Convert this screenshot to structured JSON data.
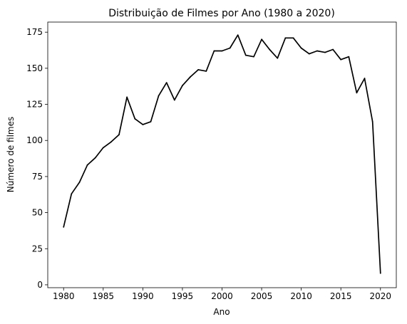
{
  "chart_data": {
    "type": "line",
    "title": "Distribuição de Filmes por Ano (1980 a 2020)",
    "xlabel": "Ano",
    "ylabel": "Número de filmes",
    "xlim": [
      1978,
      2022
    ],
    "ylim": [
      -2,
      182
    ],
    "xticks": [
      1980,
      1985,
      1990,
      1995,
      2000,
      2005,
      2010,
      2015,
      2020
    ],
    "yticks": [
      0,
      25,
      50,
      75,
      100,
      125,
      150,
      175
    ],
    "grid": false,
    "legend": "none",
    "series": [
      {
        "color": "#000000",
        "x": [
          1980,
          1981,
          1982,
          1983,
          1984,
          1985,
          1986,
          1987,
          1988,
          1989,
          1990,
          1991,
          1992,
          1993,
          1994,
          1995,
          1996,
          1997,
          1998,
          1999,
          2000,
          2001,
          2002,
          2003,
          2004,
          2005,
          2006,
          2007,
          2008,
          2009,
          2010,
          2011,
          2012,
          2013,
          2014,
          2015,
          2016,
          2017,
          2018,
          2019,
          2020
        ],
        "y": [
          40,
          63,
          71,
          83,
          88,
          95,
          99,
          104,
          130,
          115,
          111,
          113,
          131,
          140,
          128,
          138,
          144,
          149,
          148,
          162,
          162,
          164,
          173,
          159,
          158,
          170,
          163,
          157,
          171,
          171,
          164,
          160,
          162,
          161,
          163,
          156,
          158,
          133,
          143,
          113,
          8
        ]
      }
    ]
  }
}
